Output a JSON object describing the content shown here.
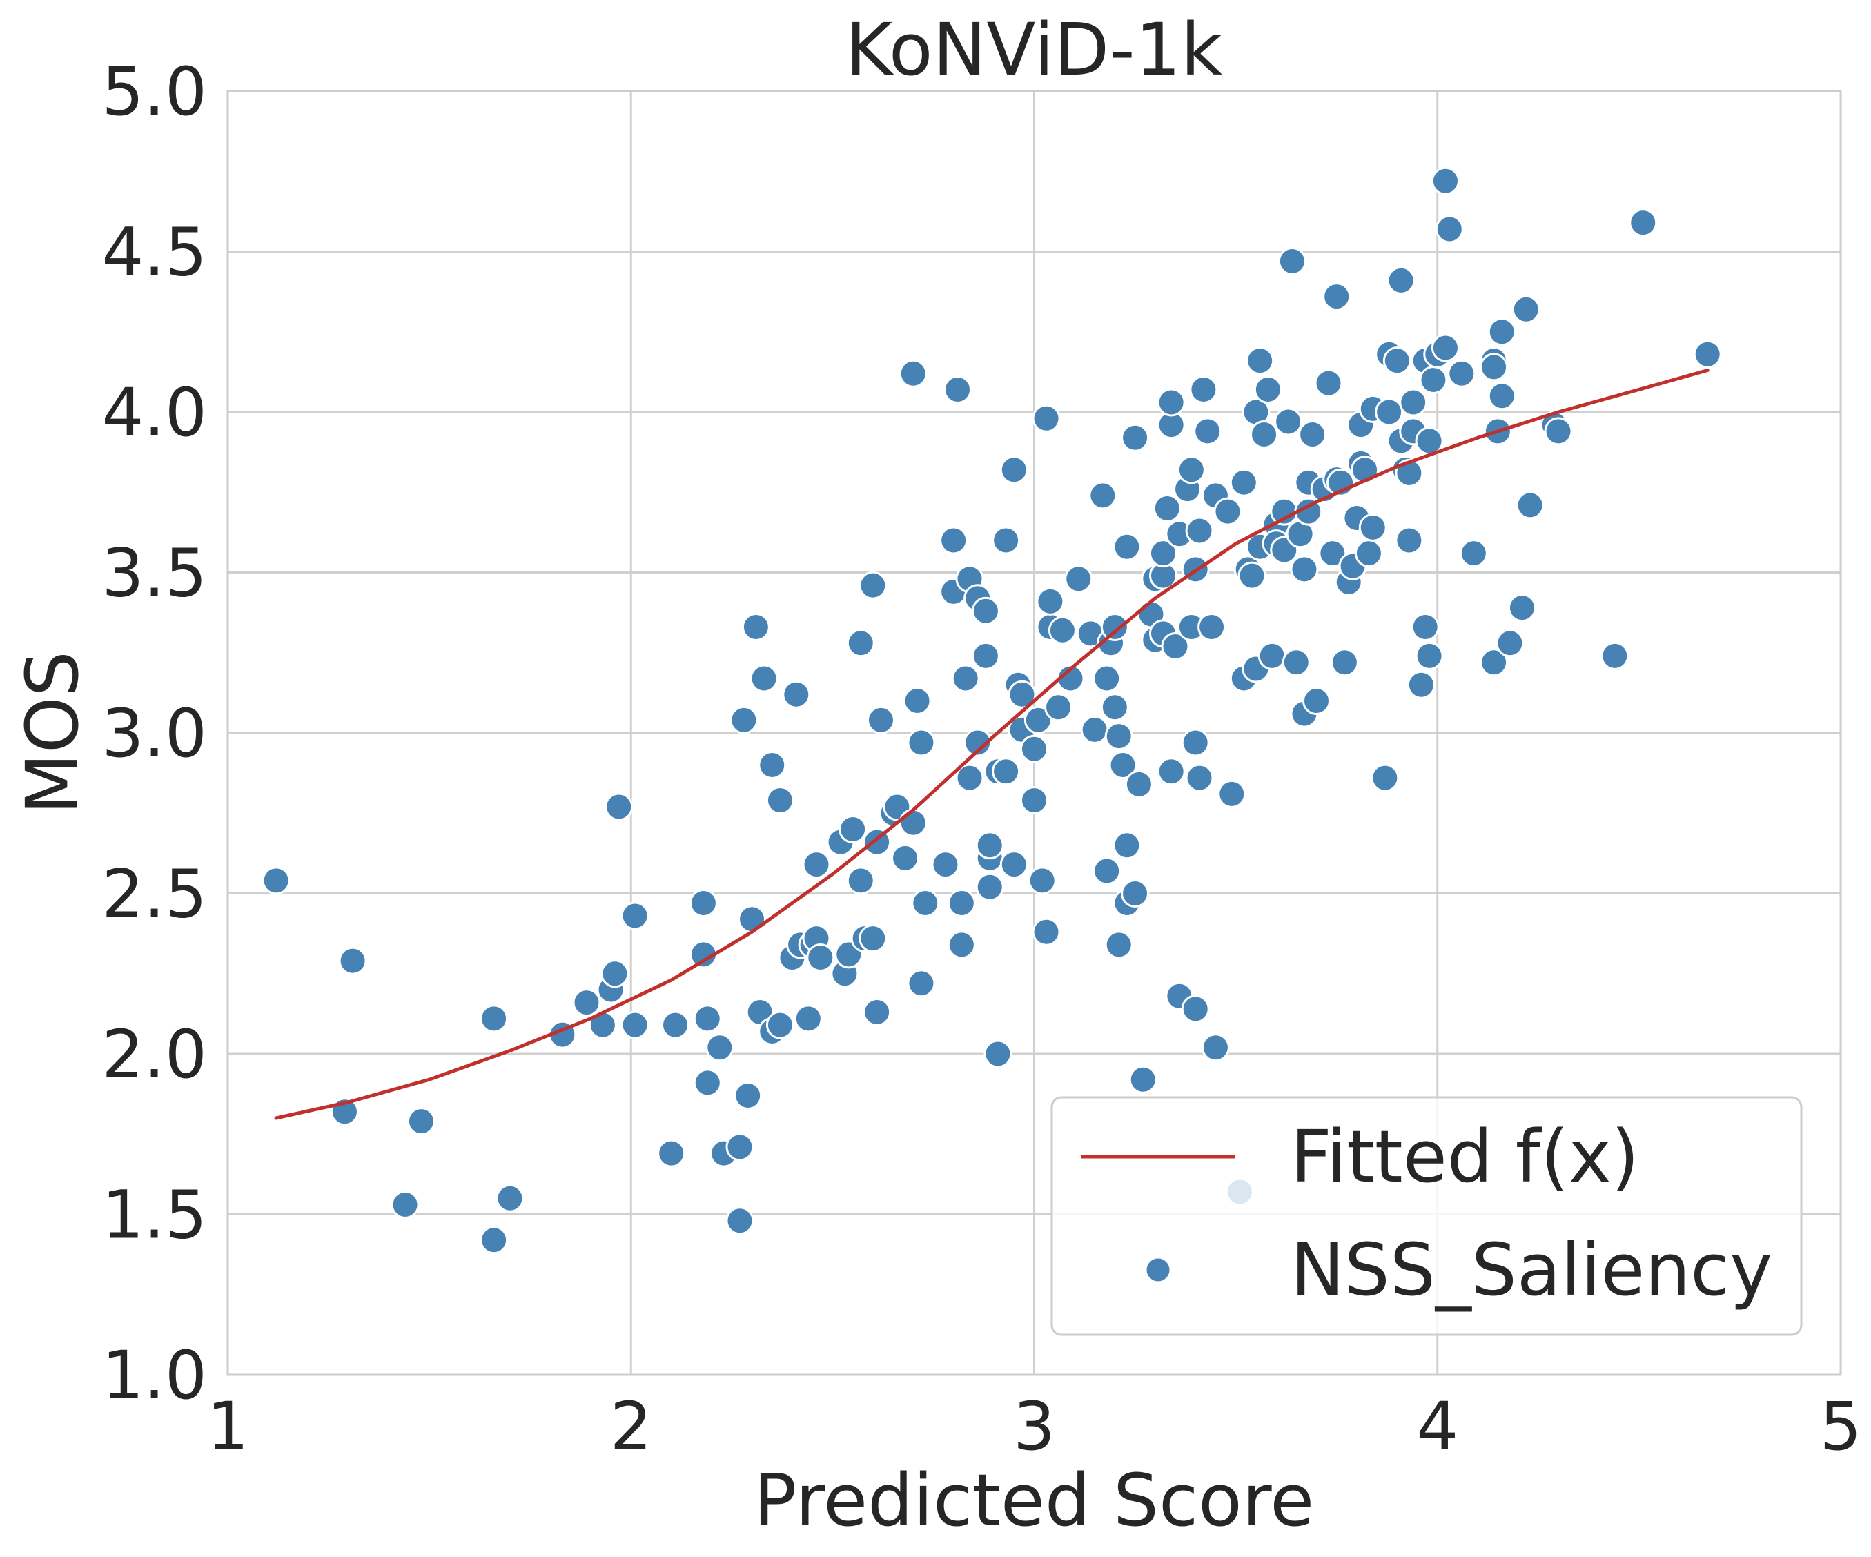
{
  "chart_data": {
    "type": "scatter",
    "title": "KoNViD-1k",
    "xlabel": "Predicted Score",
    "ylabel": "MOS",
    "xlim": [
      1,
      5
    ],
    "ylim": [
      1,
      5
    ],
    "xticks": [
      "1",
      "2",
      "3",
      "4",
      "5"
    ],
    "yticks": [
      "1.0",
      "1.5",
      "2.0",
      "2.5",
      "3.0",
      "3.5",
      "4.0",
      "4.5",
      "5.0"
    ],
    "grid": true,
    "legend_position": "bottom-right",
    "colors": {
      "scatter": "#4682b4",
      "fit": "#c0302d",
      "grid": "#d0d0d0",
      "spine": "#cccccc"
    },
    "series": [
      {
        "name": "Fitted f(x)",
        "kind": "line",
        "x": [
          1.12,
          1.3,
          1.5,
          1.7,
          1.9,
          2.1,
          2.3,
          2.5,
          2.7,
          2.9,
          3.1,
          3.3,
          3.5,
          3.7,
          3.9,
          4.1,
          4.3,
          4.5,
          4.67
        ],
        "y": [
          1.8,
          1.85,
          1.92,
          2.01,
          2.11,
          2.23,
          2.38,
          2.56,
          2.76,
          2.99,
          3.21,
          3.42,
          3.59,
          3.72,
          3.83,
          3.92,
          4.0,
          4.07,
          4.13
        ]
      },
      {
        "name": "NSS_Saliency",
        "kind": "scatter",
        "points": [
          [
            1.12,
            2.54
          ],
          [
            1.29,
            1.82
          ],
          [
            1.31,
            2.29
          ],
          [
            1.44,
            1.53
          ],
          [
            1.48,
            1.79
          ],
          [
            1.66,
            2.11
          ],
          [
            1.66,
            1.42
          ],
          [
            1.7,
            1.55
          ],
          [
            1.83,
            2.06
          ],
          [
            1.89,
            2.16
          ],
          [
            1.93,
            2.09
          ],
          [
            1.95,
            2.2
          ],
          [
            1.96,
            2.25
          ],
          [
            1.97,
            2.77
          ],
          [
            2.01,
            2.09
          ],
          [
            2.01,
            2.43
          ],
          [
            2.1,
            1.69
          ],
          [
            2.11,
            2.09
          ],
          [
            2.18,
            2.31
          ],
          [
            2.18,
            2.47
          ],
          [
            2.19,
            1.91
          ],
          [
            2.19,
            2.11
          ],
          [
            2.22,
            2.02
          ],
          [
            2.23,
            1.69
          ],
          [
            2.27,
            1.71
          ],
          [
            2.27,
            1.48
          ],
          [
            2.28,
            3.04
          ],
          [
            2.29,
            1.87
          ],
          [
            2.3,
            2.42
          ],
          [
            2.31,
            3.33
          ],
          [
            2.32,
            2.13
          ],
          [
            2.33,
            3.17
          ],
          [
            2.35,
            2.07
          ],
          [
            2.35,
            2.9
          ],
          [
            2.37,
            2.79
          ],
          [
            2.37,
            2.09
          ],
          [
            2.4,
            2.3
          ],
          [
            2.41,
            3.12
          ],
          [
            2.42,
            2.34
          ],
          [
            2.44,
            2.11
          ],
          [
            2.45,
            2.34
          ],
          [
            2.46,
            2.59
          ],
          [
            2.46,
            2.36
          ],
          [
            2.47,
            2.3
          ],
          [
            2.52,
            2.66
          ],
          [
            2.53,
            2.25
          ],
          [
            2.54,
            2.31
          ],
          [
            2.55,
            2.7
          ],
          [
            2.57,
            2.54
          ],
          [
            2.57,
            3.28
          ],
          [
            2.58,
            2.36
          ],
          [
            2.6,
            2.36
          ],
          [
            2.6,
            3.46
          ],
          [
            2.61,
            2.13
          ],
          [
            2.61,
            2.66
          ],
          [
            2.62,
            3.04
          ],
          [
            2.65,
            2.75
          ],
          [
            2.66,
            2.77
          ],
          [
            2.68,
            2.61
          ],
          [
            2.7,
            2.72
          ],
          [
            2.7,
            4.12
          ],
          [
            2.71,
            3.1
          ],
          [
            2.72,
            2.97
          ],
          [
            2.72,
            2.22
          ],
          [
            2.73,
            2.47
          ],
          [
            2.78,
            2.59
          ],
          [
            2.8,
            3.44
          ],
          [
            2.8,
            3.6
          ],
          [
            2.81,
            4.07
          ],
          [
            2.82,
            2.47
          ],
          [
            2.82,
            2.34
          ],
          [
            2.83,
            3.17
          ],
          [
            2.84,
            2.86
          ],
          [
            2.84,
            3.48
          ],
          [
            2.86,
            3.42
          ],
          [
            2.86,
            2.97
          ],
          [
            2.88,
            3.24
          ],
          [
            2.88,
            3.38
          ],
          [
            2.89,
            2.52
          ],
          [
            2.89,
            2.61
          ],
          [
            2.89,
            2.65
          ],
          [
            2.91,
            2.88
          ],
          [
            2.91,
            2.0
          ],
          [
            2.93,
            3.6
          ],
          [
            2.93,
            2.88
          ],
          [
            2.95,
            2.59
          ],
          [
            2.95,
            3.82
          ],
          [
            2.96,
            3.15
          ],
          [
            2.97,
            3.12
          ],
          [
            2.97,
            3.01
          ],
          [
            3.0,
            2.79
          ],
          [
            3.0,
            2.95
          ],
          [
            3.01,
            3.04
          ],
          [
            3.02,
            2.54
          ],
          [
            3.03,
            2.38
          ],
          [
            3.03,
            3.98
          ],
          [
            3.04,
            3.33
          ],
          [
            3.04,
            3.41
          ],
          [
            3.06,
            3.08
          ],
          [
            3.07,
            3.32
          ],
          [
            3.09,
            3.17
          ],
          [
            3.11,
            3.48
          ],
          [
            3.14,
            3.31
          ],
          [
            3.15,
            3.01
          ],
          [
            3.17,
            3.74
          ],
          [
            3.18,
            3.17
          ],
          [
            3.18,
            2.57
          ],
          [
            3.19,
            3.28
          ],
          [
            3.2,
            3.33
          ],
          [
            3.2,
            3.08
          ],
          [
            3.21,
            2.34
          ],
          [
            3.21,
            2.99
          ],
          [
            3.22,
            2.9
          ],
          [
            3.23,
            3.58
          ],
          [
            3.23,
            2.47
          ],
          [
            3.23,
            2.65
          ],
          [
            3.25,
            2.5
          ],
          [
            3.25,
            3.92
          ],
          [
            3.26,
            2.84
          ],
          [
            3.27,
            1.92
          ],
          [
            3.29,
            3.37
          ],
          [
            3.3,
            3.48
          ],
          [
            3.3,
            3.29
          ],
          [
            3.32,
            3.31
          ],
          [
            3.32,
            3.49
          ],
          [
            3.32,
            3.56
          ],
          [
            3.33,
            3.7
          ],
          [
            3.34,
            2.88
          ],
          [
            3.34,
            3.96
          ],
          [
            3.34,
            4.03
          ],
          [
            3.35,
            3.27
          ],
          [
            3.36,
            3.62
          ],
          [
            3.36,
            2.18
          ],
          [
            3.38,
            3.76
          ],
          [
            3.39,
            3.82
          ],
          [
            3.39,
            3.33
          ],
          [
            3.4,
            3.51
          ],
          [
            3.4,
            2.14
          ],
          [
            3.4,
            2.97
          ],
          [
            3.41,
            2.86
          ],
          [
            3.41,
            3.63
          ],
          [
            3.42,
            4.07
          ],
          [
            3.43,
            3.94
          ],
          [
            3.44,
            3.33
          ],
          [
            3.45,
            3.74
          ],
          [
            3.45,
            2.02
          ],
          [
            3.48,
            3.69
          ],
          [
            3.49,
            2.81
          ],
          [
            3.51,
            1.57
          ],
          [
            3.52,
            3.78
          ],
          [
            3.52,
            3.17
          ],
          [
            3.53,
            3.51
          ],
          [
            3.54,
            3.49
          ],
          [
            3.55,
            4.0
          ],
          [
            3.55,
            3.2
          ],
          [
            3.56,
            3.58
          ],
          [
            3.56,
            4.16
          ],
          [
            3.57,
            3.93
          ],
          [
            3.58,
            4.07
          ],
          [
            3.59,
            3.24
          ],
          [
            3.6,
            3.65
          ],
          [
            3.6,
            3.59
          ],
          [
            3.62,
            3.57
          ],
          [
            3.62,
            3.69
          ],
          [
            3.63,
            3.97
          ],
          [
            3.64,
            4.47
          ],
          [
            3.65,
            3.22
          ],
          [
            3.66,
            3.62
          ],
          [
            3.67,
            3.51
          ],
          [
            3.67,
            3.06
          ],
          [
            3.68,
            3.69
          ],
          [
            3.68,
            3.78
          ],
          [
            3.69,
            3.93
          ],
          [
            3.7,
            3.1
          ],
          [
            3.72,
            3.76
          ],
          [
            3.73,
            4.09
          ],
          [
            3.74,
            3.56
          ],
          [
            3.75,
            3.79
          ],
          [
            3.75,
            4.36
          ],
          [
            3.76,
            3.78
          ],
          [
            3.77,
            3.22
          ],
          [
            3.78,
            3.47
          ],
          [
            3.79,
            3.52
          ],
          [
            3.8,
            3.67
          ],
          [
            3.81,
            3.84
          ],
          [
            3.81,
            3.96
          ],
          [
            3.82,
            3.82
          ],
          [
            3.83,
            3.56
          ],
          [
            3.84,
            4.01
          ],
          [
            3.84,
            3.64
          ],
          [
            3.87,
            2.86
          ],
          [
            3.88,
            4.18
          ],
          [
            3.88,
            4.0
          ],
          [
            3.9,
            4.16
          ],
          [
            3.91,
            3.91
          ],
          [
            3.91,
            4.41
          ],
          [
            3.92,
            3.82
          ],
          [
            3.93,
            3.6
          ],
          [
            3.93,
            3.81
          ],
          [
            3.94,
            4.03
          ],
          [
            3.94,
            3.94
          ],
          [
            3.96,
            3.15
          ],
          [
            3.97,
            4.16
          ],
          [
            3.97,
            3.33
          ],
          [
            3.98,
            3.24
          ],
          [
            3.98,
            3.91
          ],
          [
            3.99,
            4.1
          ],
          [
            4.0,
            4.18
          ],
          [
            4.02,
            4.72
          ],
          [
            4.02,
            4.2
          ],
          [
            4.03,
            4.57
          ],
          [
            4.06,
            4.12
          ],
          [
            4.09,
            3.56
          ],
          [
            4.14,
            4.16
          ],
          [
            4.14,
            4.14
          ],
          [
            4.14,
            3.22
          ],
          [
            4.15,
            3.94
          ],
          [
            4.16,
            4.05
          ],
          [
            4.16,
            4.25
          ],
          [
            4.18,
            3.28
          ],
          [
            4.21,
            3.39
          ],
          [
            4.22,
            4.32
          ],
          [
            4.23,
            3.71
          ],
          [
            4.29,
            3.96
          ],
          [
            4.3,
            3.94
          ],
          [
            4.44,
            3.24
          ],
          [
            4.51,
            4.59
          ],
          [
            4.67,
            4.18
          ]
        ]
      }
    ]
  }
}
